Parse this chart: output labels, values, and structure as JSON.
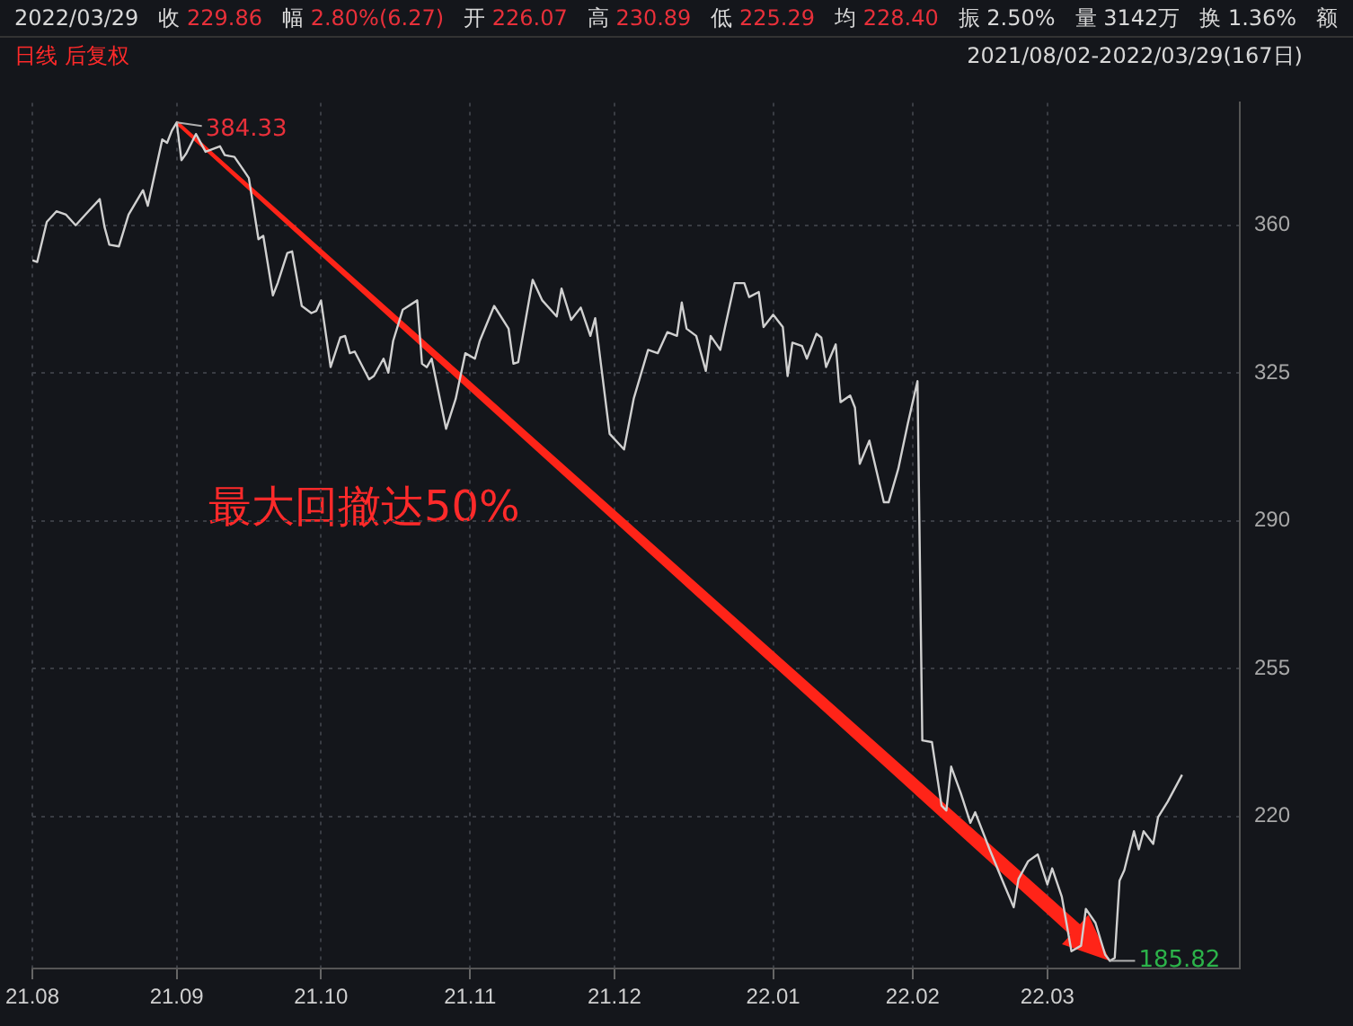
{
  "chart_data": {
    "type": "line",
    "subtitle": "日线 后复权",
    "annotations": [
      "2022/03/29",
      "收 229.86",
      "幅 2.80%(6.27)",
      "开 226.07",
      "高 230.89",
      "低 225.29",
      "均 228.40",
      "振 2.50%",
      "量 3142万",
      "换 1.36%",
      "额",
      "2021/08/02-2022/03/29(167日)",
      "最大回撤达50%",
      {
        "text": "384.33",
        "x": "2021-09-01",
        "y": 384.33
      },
      {
        "text": "185.82",
        "x": "2022-03-14",
        "y": 185.82
      }
    ],
    "x": [
      "2021-08-02",
      "2021-08-03",
      "2021-08-05",
      "2021-08-07",
      "2021-08-09",
      "2021-08-11",
      "2021-08-13",
      "2021-08-16",
      "2021-08-17",
      "2021-08-18",
      "2021-08-20",
      "2021-08-22",
      "2021-08-25",
      "2021-08-26",
      "2021-08-29",
      "2021-08-30",
      "2021-08-31",
      "2021-09-01",
      "2021-09-02",
      "2021-09-03",
      "2021-09-05",
      "2021-09-07",
      "2021-09-10",
      "2021-09-11",
      "2021-09-13",
      "2021-09-15",
      "2021-09-16",
      "2021-09-18",
      "2021-09-19",
      "2021-09-21",
      "2021-09-22",
      "2021-09-24",
      "2021-09-25",
      "2021-09-27",
      "2021-09-29",
      "2021-09-30",
      "2021-10-01",
      "2021-10-03",
      "2021-10-05",
      "2021-10-06",
      "2021-10-07",
      "2021-10-08",
      "2021-10-11",
      "2021-10-12",
      "2021-10-14",
      "2021-10-15",
      "2021-10-16",
      "2021-10-18",
      "2021-10-21",
      "2021-10-22",
      "2021-10-23",
      "2021-10-24",
      "2021-10-27",
      "2021-10-29",
      "2021-10-31",
      "2021-11-02",
      "2021-11-03",
      "2021-11-06",
      "2021-11-09",
      "2021-11-10",
      "2021-11-11",
      "2021-11-14",
      "2021-11-16",
      "2021-11-19",
      "2021-11-20",
      "2021-11-22",
      "2021-11-24",
      "2021-11-26",
      "2021-11-27",
      "2021-11-30",
      "2021-12-03",
      "2021-12-05",
      "2021-12-08",
      "2021-12-10",
      "2021-12-12",
      "2021-12-14",
      "2021-12-15",
      "2021-12-16",
      "2021-12-18",
      "2021-12-20",
      "2021-12-21",
      "2021-12-23",
      "2021-12-24",
      "2021-12-26",
      "2021-12-28",
      "2021-12-29",
      "2021-12-31",
      "2022-01-01",
      "2022-01-03",
      "2022-01-05",
      "2022-01-06",
      "2022-01-07",
      "2022-01-09",
      "2022-01-10",
      "2022-01-12",
      "2022-01-13",
      "2022-01-14",
      "2022-01-16",
      "2022-01-17",
      "2022-01-19",
      "2022-01-20",
      "2022-01-21",
      "2022-01-23",
      "2022-01-26",
      "2022-01-27",
      "2022-01-29",
      "2022-01-31",
      "2022-02-02",
      "2022-02-03",
      "2022-02-05",
      "2022-02-07",
      "2022-02-08",
      "2022-02-09",
      "2022-02-11",
      "2022-02-13",
      "2022-02-14",
      "2022-02-17",
      "2022-02-20",
      "2022-02-22",
      "2022-02-23",
      "2022-02-25",
      "2022-02-27",
      "2022-03-01",
      "2022-03-02",
      "2022-03-04",
      "2022-03-06",
      "2022-03-08",
      "2022-03-09",
      "2022-03-11",
      "2022-03-13",
      "2022-03-14",
      "2022-03-15",
      "2022-03-16",
      "2022-03-17",
      "2022-03-19",
      "2022-03-20",
      "2022-03-21",
      "2022-03-23",
      "2022-03-24",
      "2022-03-26",
      "2022-03-29"
    ],
    "series": [
      {
        "color": "#d0d0d0",
        "values": [
          351.7,
          351.3,
          360.8,
          363.3,
          362.5,
          360,
          362.5,
          366.2,
          359.6,
          355.4,
          355,
          362.5,
          368.3,
          364.6,
          380.3,
          379.5,
          382.4,
          384.33,
          375.4,
          377,
          381.6,
          377.4,
          378.7,
          376.6,
          376.2,
          372.9,
          371.2,
          356.7,
          357.5,
          343.4,
          346.3,
          353.4,
          353.8,
          340.9,
          339.2,
          339.7,
          342.2,
          326.4,
          333.4,
          333.8,
          329.7,
          330.1,
          323.5,
          324.3,
          328.4,
          325.1,
          332.6,
          340,
          342.2,
          327.2,
          326.4,
          328.4,
          311.8,
          318.9,
          329.7,
          328.4,
          332.6,
          340.9,
          335.5,
          327.2,
          327.6,
          347.1,
          342.2,
          338.4,
          345,
          337.6,
          340.5,
          333.8,
          338,
          310.6,
          306.9,
          318.9,
          330.5,
          329.7,
          334.7,
          333.8,
          341.7,
          335.5,
          333.8,
          325.5,
          333.8,
          330.5,
          335.9,
          346.3,
          346.3,
          343,
          344.2,
          335.9,
          338.8,
          335.9,
          324.3,
          332.2,
          331.4,
          328.4,
          334.3,
          333.4,
          326.4,
          331.8,
          318.1,
          319.7,
          316.8,
          303.5,
          309,
          294.4,
          294.4,
          302.3,
          313.1,
          323.1,
          238,
          237.6,
          222.6,
          221.4,
          231.8,
          225.5,
          218.5,
          221,
          212.2,
          203.9,
          198.5,
          205.2,
          209.4,
          211,
          203.9,
          207.7,
          201,
          188.1,
          189.4,
          198.1,
          194.8,
          187.3,
          185.82,
          186.5,
          204.8,
          207.3,
          216.5,
          212.2,
          216.5,
          213.5,
          219.8,
          223.5,
          229.86
        ]
      }
    ],
    "xlim": [
      "2021-08-02",
      "2022-04-10"
    ],
    "xticks": [
      {
        "value": "2021-08-02",
        "label": "21.08"
      },
      {
        "value": "2021-09-01",
        "label": "21.09"
      },
      {
        "value": "2021-10-01",
        "label": "21.10"
      },
      {
        "value": "2021-11-01",
        "label": "21.11"
      },
      {
        "value": "2021-12-01",
        "label": "21.12"
      },
      {
        "value": "2022-01-03",
        "label": "22.01"
      },
      {
        "value": "2022-02-01",
        "label": "22.02"
      },
      {
        "value": "2022-03-01",
        "label": "22.03"
      }
    ],
    "ylim": [
      184,
      389
    ],
    "yticks": [
      220,
      255,
      290,
      325,
      360
    ],
    "grid": true,
    "marker": "none",
    "line_style": "solid"
  }
}
